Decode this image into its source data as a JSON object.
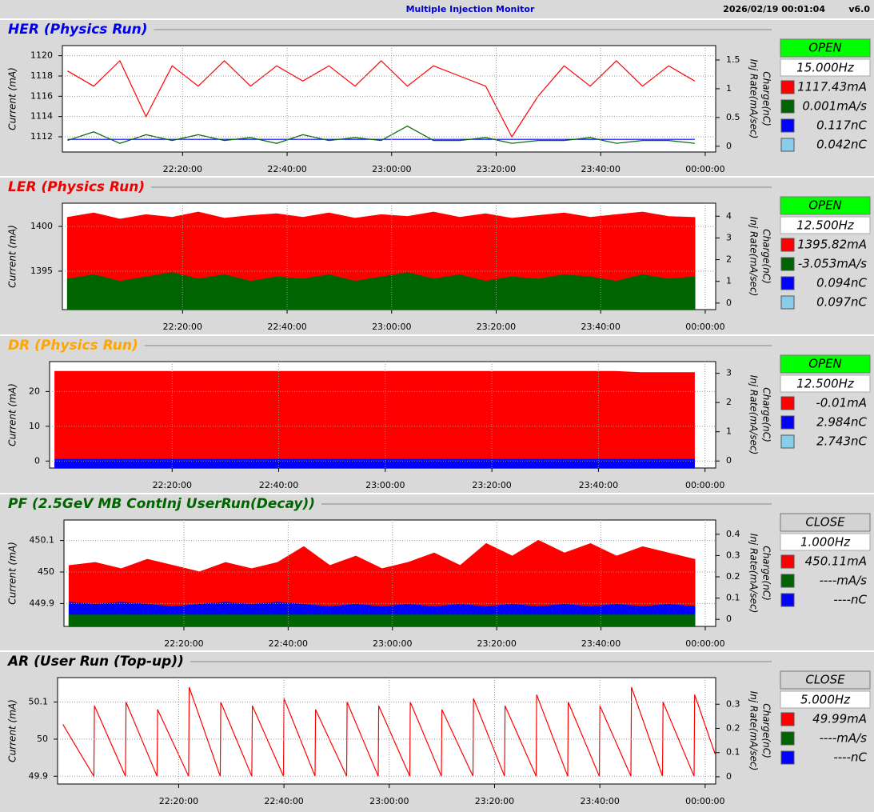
{
  "header": {
    "title": "Multiple Injection Monitor",
    "timestamp": "2026/02/19 00:01:04",
    "version": "v6.0"
  },
  "time_axis": {
    "xlim": [
      -3,
      122
    ],
    "xticks": [
      {
        "value": 20,
        "label": "22:20:00"
      },
      {
        "value": 40,
        "label": "22:40:00"
      },
      {
        "value": 60,
        "label": "23:00:00"
      },
      {
        "value": 80,
        "label": "23:20:00"
      },
      {
        "value": 100,
        "label": "23:40:00"
      },
      {
        "value": 120,
        "label": "00:00:00"
      }
    ]
  },
  "panels": [
    {
      "title": "HER  (Physics Run)",
      "title_color": "#0000ee",
      "status": "OPEN",
      "status_color": "#00ff00",
      "rate": "15.000Hz",
      "y_title": "Current (mA)",
      "y2_titles": [
        "Charge(nC)",
        "Inj Rate(mA/sec)"
      ],
      "ylim": [
        1110.5,
        1121
      ],
      "yticks": [
        1112,
        1114,
        1116,
        1118,
        1120
      ],
      "y2lim": [
        -0.1,
        1.75
      ],
      "y2ticks": [
        0,
        0.5,
        1,
        1.5
      ],
      "x": [
        -2,
        3,
        8,
        13,
        18,
        23,
        28,
        33,
        38,
        43,
        48,
        53,
        58,
        63,
        68,
        73,
        78,
        83,
        88,
        93,
        98,
        103,
        108,
        113,
        118
      ],
      "traces": [
        {
          "color": "#ff0000",
          "axis": "y",
          "fill": false,
          "values": [
            1118.5,
            1117,
            1119.5,
            1114,
            1119,
            1117,
            1119.5,
            1117,
            1119,
            1117.5,
            1119,
            1117,
            1119.5,
            1117,
            1119,
            1118,
            1117,
            1112,
            1116,
            1119,
            1117,
            1119.5,
            1117,
            1119,
            1117.5
          ]
        },
        {
          "color": "#0000ff",
          "axis": "y2",
          "fill": false,
          "values": [
            0.12,
            0.12,
            0.12,
            0.12,
            0.12,
            0.12,
            0.12,
            0.12,
            0.12,
            0.12,
            0.12,
            0.12,
            0.12,
            0.12,
            0.12,
            0.12,
            0.12,
            0.12,
            0.12,
            0.12,
            0.12,
            0.12,
            0.12,
            0.12,
            0.12
          ]
        },
        {
          "color": "#006400",
          "axis": "y2",
          "fill": false,
          "values": [
            0.1,
            0.25,
            0.05,
            0.2,
            0.1,
            0.2,
            0.1,
            0.15,
            0.05,
            0.2,
            0.1,
            0.15,
            0.1,
            0.35,
            0.1,
            0.1,
            0.15,
            0.05,
            0.1,
            0.1,
            0.15,
            0.05,
            0.1,
            0.1,
            0.05
          ]
        }
      ],
      "readings": [
        {
          "color": "#ff0000",
          "text": "1117.43mA"
        },
        {
          "color": "#006400",
          "text": "0.001mA/s"
        },
        {
          "color": "#0000ff",
          "text": "0.117nC"
        },
        {
          "color": "#87ceeb",
          "text": "0.042nC"
        }
      ]
    },
    {
      "title": "LER  (Physics Run)",
      "title_color": "#ee0000",
      "status": "OPEN",
      "status_color": "#00ff00",
      "rate": "12.500Hz",
      "y_title": "Current (mA)",
      "y2_titles": [
        "Charge(nC)",
        "Inj Rate(mA/sec)"
      ],
      "ylim": [
        1390.7,
        1402.6
      ],
      "yticks": [
        1395,
        1400
      ],
      "y2lim": [
        -0.3,
        4.6
      ],
      "y2ticks": [
        0,
        1,
        2,
        3,
        4
      ],
      "x": [
        -2,
        3,
        8,
        13,
        18,
        23,
        28,
        33,
        38,
        43,
        48,
        53,
        58,
        63,
        68,
        73,
        78,
        83,
        88,
        93,
        98,
        103,
        108,
        113,
        118
      ],
      "traces": [
        {
          "color": "#ff0000",
          "axis": "y",
          "fill": true,
          "values": [
            1401,
            1401.5,
            1400.8,
            1401.3,
            1401,
            1401.6,
            1400.9,
            1401.2,
            1401.4,
            1401,
            1401.5,
            1400.9,
            1401.3,
            1401.1,
            1401.6,
            1401,
            1401.4,
            1400.9,
            1401.2,
            1401.5,
            1401,
            1401.3,
            1401.6,
            1401.1,
            1401
          ]
        },
        {
          "color": "#006400",
          "axis": "y2",
          "fill": true,
          "values": [
            1.1,
            1.3,
            1.0,
            1.2,
            1.4,
            1.1,
            1.3,
            1.0,
            1.2,
            1.1,
            1.3,
            1.0,
            1.2,
            1.4,
            1.1,
            1.3,
            1.0,
            1.2,
            1.1,
            1.3,
            1.2,
            1.0,
            1.3,
            1.1,
            1.2
          ]
        }
      ],
      "readings": [
        {
          "color": "#ff0000",
          "text": "1395.82mA"
        },
        {
          "color": "#006400",
          "text": "-3.053mA/s"
        },
        {
          "color": "#0000ff",
          "text": "0.094nC"
        },
        {
          "color": "#87ceeb",
          "text": "0.097nC"
        }
      ]
    },
    {
      "title": "DR  (Physics Run)",
      "title_color": "#ffa500",
      "status": "OPEN",
      "status_color": "#00ff00",
      "rate": "12.500Hz",
      "y_title": "Current (mA)",
      "y2_titles": [
        "Charge(nC)",
        "Inj Rate(mA/sec)"
      ],
      "ylim": [
        -2,
        28.6
      ],
      "yticks": [
        0,
        10,
        20
      ],
      "y2lim": [
        -0.24,
        3.4
      ],
      "y2ticks": [
        0,
        1,
        2,
        3
      ],
      "x": [
        -2,
        3,
        8,
        13,
        18,
        23,
        28,
        33,
        38,
        43,
        48,
        53,
        58,
        63,
        68,
        73,
        78,
        83,
        88,
        93,
        98,
        103,
        108,
        113,
        118
      ],
      "traces": [
        {
          "color": "#ff0000",
          "axis": "y2",
          "fill": true,
          "values": [
            3.06,
            3.06,
            3.06,
            3.06,
            3.06,
            3.06,
            3.06,
            3.06,
            3.06,
            3.06,
            3.06,
            3.06,
            3.06,
            3.06,
            3.06,
            3.06,
            3.06,
            3.06,
            3.06,
            3.06,
            3.06,
            3.06,
            3.02,
            3.02,
            3.02
          ]
        },
        {
          "color": "#0000ff",
          "axis": "y2",
          "fill": true,
          "values": [
            0.05,
            0.05,
            0.05,
            0.05,
            0.05,
            0.05,
            0.05,
            0.05,
            0.05,
            0.05,
            0.05,
            0.05,
            0.05,
            0.05,
            0.05,
            0.05,
            0.05,
            0.05,
            0.05,
            0.05,
            0.05,
            0.05,
            0.05,
            0.05,
            0.05
          ]
        }
      ],
      "readings": [
        {
          "color": "#ff0000",
          "text": "-0.01mA"
        },
        {
          "color": "#0000ff",
          "text": "2.984nC"
        },
        {
          "color": "#87ceeb",
          "text": "2.743nC"
        }
      ]
    },
    {
      "title": "PF  (2.5GeV MB ContInj UserRun(Decay))",
      "title_color": "#006400",
      "status": "CLOSE",
      "status_color": "#d3d3d3",
      "rate": "1.000Hz",
      "y_title": "Current (mA)",
      "y2_titles": [
        "Charge(nC)",
        "Inj Rate(mA/sec)"
      ],
      "ylim": [
        449.8275,
        450.165
      ],
      "yticks": [
        449.9,
        450,
        450.1
      ],
      "y2lim": [
        -0.033,
        0.467
      ],
      "y2ticks": [
        0,
        0.1,
        0.2,
        0.3,
        0.4
      ],
      "x": [
        -2,
        3,
        8,
        13,
        18,
        23,
        28,
        33,
        38,
        43,
        48,
        53,
        58,
        63,
        68,
        73,
        78,
        83,
        88,
        93,
        98,
        103,
        108,
        113,
        118
      ],
      "traces": [
        {
          "color": "#ff0000",
          "axis": "y",
          "fill": true,
          "values": [
            450.02,
            450.03,
            450.01,
            450.04,
            450.02,
            450.0,
            450.03,
            450.01,
            450.03,
            450.08,
            450.02,
            450.05,
            450.01,
            450.03,
            450.06,
            450.02,
            450.09,
            450.05,
            450.1,
            450.06,
            450.09,
            450.05,
            450.08,
            450.06,
            450.04
          ]
        },
        {
          "color": "#0000ff",
          "axis": "y2",
          "fill": true,
          "values": [
            0.08,
            0.07,
            0.08,
            0.07,
            0.06,
            0.07,
            0.08,
            0.07,
            0.08,
            0.07,
            0.06,
            0.07,
            0.06,
            0.07,
            0.06,
            0.07,
            0.06,
            0.07,
            0.06,
            0.07,
            0.06,
            0.07,
            0.06,
            0.07,
            0.06
          ]
        },
        {
          "color": "#006400",
          "axis": "y2",
          "fill": true,
          "values": [
            0.02,
            0.02,
            0.02,
            0.02,
            0.02,
            0.02,
            0.02,
            0.02,
            0.02,
            0.02,
            0.02,
            0.02,
            0.02,
            0.02,
            0.02,
            0.02,
            0.02,
            0.02,
            0.02,
            0.02,
            0.02,
            0.02,
            0.02,
            0.02,
            0.02
          ]
        }
      ],
      "readings": [
        {
          "color": "#ff0000",
          "text": "450.11mA"
        },
        {
          "color": "#006400",
          "text": "----mA/s"
        },
        {
          "color": "#0000ff",
          "text": "----nC"
        }
      ]
    },
    {
      "title": "AR  (User Run (Top-up))",
      "title_color": "#000000",
      "status": "CLOSE",
      "status_color": "#d3d3d3",
      "rate": "5.000Hz",
      "y_title": "Current (mA)",
      "y2_titles": [
        "Charge(nC)",
        "Inj Rate(mA/sec)"
      ],
      "ylim": [
        49.879,
        50.166
      ],
      "yticks": [
        49.9,
        50,
        50.1
      ],
      "y2lim": [
        -0.03,
        0.41
      ],
      "y2ticks": [
        0,
        0.1,
        0.2,
        0.3
      ],
      "x": [
        -2,
        3.9,
        4,
        9.9,
        10,
        15.9,
        16,
        21.9,
        22,
        27.9,
        28,
        33.9,
        34,
        39.9,
        40,
        45.9,
        46,
        51.9,
        52,
        57.9,
        58,
        63.9,
        64,
        69.9,
        70,
        75.9,
        76,
        81.9,
        82,
        87.9,
        88,
        93.9,
        94,
        99.9,
        100,
        105.9,
        106,
        111.9,
        112,
        117.9,
        118,
        121.9
      ],
      "traces": [
        {
          "color": "#ff0000",
          "axis": "y",
          "fill": false,
          "values": [
            50.04,
            49.9,
            50.09,
            49.9,
            50.1,
            49.9,
            50.08,
            49.9,
            50.14,
            49.9,
            50.1,
            49.9,
            50.09,
            49.9,
            50.11,
            49.9,
            50.08,
            49.9,
            50.1,
            49.9,
            50.09,
            49.9,
            50.1,
            49.9,
            50.08,
            49.9,
            50.11,
            49.9,
            50.09,
            49.9,
            50.12,
            49.9,
            50.1,
            49.9,
            50.09,
            49.9,
            50.14,
            49.9,
            50.1,
            49.9,
            50.12,
            49.96
          ]
        }
      ],
      "readings": [
        {
          "color": "#ff0000",
          "text": "49.99mA"
        },
        {
          "color": "#006400",
          "text": "----mA/s"
        },
        {
          "color": "#0000ff",
          "text": "----nC"
        }
      ]
    }
  ]
}
